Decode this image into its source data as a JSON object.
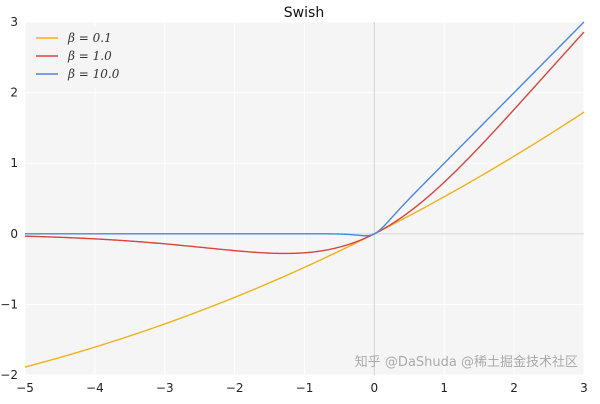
{
  "chart_data": {
    "type": "line",
    "title": "Swish",
    "function": "y = x * sigmoid(beta * x)",
    "xlabel": "",
    "ylabel": "",
    "xlim": [
      -5,
      3
    ],
    "ylim": [
      -2,
      3
    ],
    "xticks": [
      "−5",
      "−4",
      "−3",
      "−2",
      "−1",
      "0",
      "1",
      "2",
      "3"
    ],
    "yticks": [
      "−2",
      "−1",
      "0",
      "1",
      "2",
      "3"
    ],
    "xtick_values": [
      -5,
      -4,
      -3,
      -2,
      -1,
      0,
      1,
      2,
      3
    ],
    "ytick_values": [
      -2,
      -1,
      0,
      1,
      2,
      3
    ],
    "grid": true,
    "legend_position": "top-left",
    "x": [
      -5,
      -4,
      -3,
      -2,
      -1,
      0,
      1,
      2,
      3
    ],
    "series": [
      {
        "name": "β = 0.1",
        "beta": 0.1,
        "color": "#f0b21a",
        "values": [
          -1.888,
          -1.605,
          -1.277,
          -0.9,
          -0.475,
          0,
          0.525,
          1.1,
          1.723
        ]
      },
      {
        "name": "β = 1.0",
        "beta": 1.0,
        "color": "#d9453d",
        "values": [
          -0.033,
          -0.072,
          -0.142,
          -0.238,
          -0.269,
          0,
          0.731,
          1.762,
          2.858
        ]
      },
      {
        "name": "β = 10.0",
        "beta": 10.0,
        "color": "#4a86e0",
        "values": [
          0,
          0,
          0,
          0,
          0,
          0,
          1.0,
          2.0,
          3.0
        ]
      }
    ]
  },
  "watermark": "知乎 @DaShuda @稀土掘金技术社区"
}
